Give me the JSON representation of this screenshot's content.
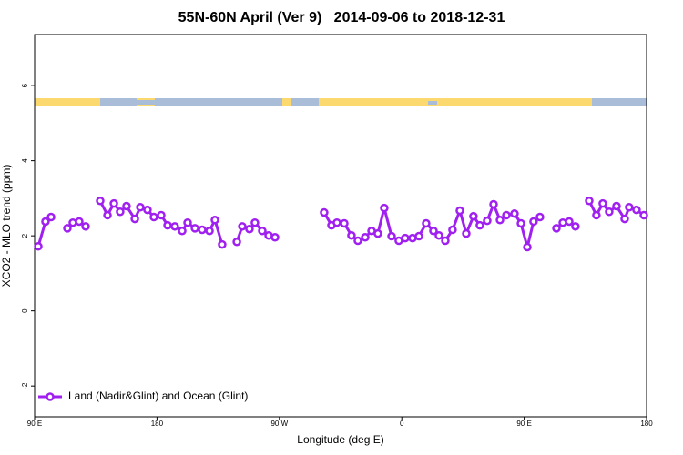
{
  "chart_data": {
    "type": "line",
    "title": "55N-60N April (Ver 9)   2014-09-06 to 2018-12-31",
    "xlabel": "Longitude (deg E)",
    "ylabel": "XCO2 - MLO trend (ppm)",
    "xlim": [
      90,
      540
    ],
    "ylim": [
      -2.82,
      7.36
    ],
    "xticks": [
      {
        "value": 90,
        "label": "90 E"
      },
      {
        "value": 180,
        "label": "180"
      },
      {
        "value": 270,
        "label": "90 W"
      },
      {
        "value": 360,
        "label": "0"
      },
      {
        "value": 450,
        "label": "90 E"
      },
      {
        "value": 540,
        "label": "180"
      }
    ],
    "yticks": [
      -2,
      0,
      2,
      4,
      6
    ],
    "legend": "bottom-left",
    "x": [
      92.7,
      98.0,
      102.1,
      108.1,
      114.1,
      118.1,
      122.8,
      127.5,
      132.9,
      138.2,
      143.6,
      148.3,
      152.9,
      157.6,
      163.7,
      167.7,
      173.0,
      177.7,
      183.1,
      187.8,
      193.1,
      198.5,
      202.5,
      207.9,
      213.2,
      218.6,
      222.6,
      227.9,
      233.3,
      238.7,
      242.7,
      248.0,
      252.0,
      257.4,
      262.1,
      266.8,
      285.5,
      302.9,
      308.3,
      312.3,
      317.7,
      323.0,
      327.7,
      333.1,
      337.8,
      342.4,
      347.1,
      352.5,
      357.8,
      362.5,
      367.9,
      372.6,
      377.9,
      383.3,
      387.3,
      392.0,
      397.3,
      402.7,
      407.4,
      412.7,
      417.4,
      422.8,
      427.5,
      432.2,
      436.9,
      442.9,
      447.6,
      452.3,
      456.9,
      461.6,
      467.7,
      473.7,
      478.4,
      483.1,
      487.7,
      493.1,
      497.8,
      503.1,
      507.8,
      512.5,
      517.9,
      523.9,
      527.2,
      532.6,
      538.0
    ],
    "series": [
      {
        "name": "Land (Nadir&Glint) and Ocean (Glint)",
        "color": "#a020f0",
        "values": [
          1.72,
          2.38,
          2.5,
          null,
          2.2,
          2.35,
          2.38,
          2.25,
          null,
          2.93,
          2.55,
          2.86,
          2.64,
          2.79,
          2.45,
          2.76,
          2.69,
          2.5,
          2.55,
          2.28,
          2.25,
          2.13,
          2.35,
          2.2,
          2.16,
          2.13,
          2.42,
          1.77,
          null,
          1.84,
          2.25,
          2.18,
          2.35,
          2.13,
          2.01,
          1.96,
          null,
          2.62,
          2.28,
          2.35,
          2.33,
          2.01,
          1.87,
          1.96,
          2.13,
          2.06,
          2.74,
          1.99,
          1.87,
          1.94,
          1.94,
          1.99,
          2.33,
          2.13,
          2.01,
          1.87,
          2.16,
          2.67,
          2.06,
          2.52,
          2.28,
          2.4,
          2.84,
          2.42,
          2.55,
          2.59,
          2.33,
          1.7,
          2.38,
          2.5,
          null,
          2.2,
          2.35,
          2.38,
          2.25,
          null,
          2.93,
          2.55,
          2.86,
          2.64,
          2.79,
          2.45,
          2.76,
          2.69,
          2.55
        ]
      }
    ]
  }
}
